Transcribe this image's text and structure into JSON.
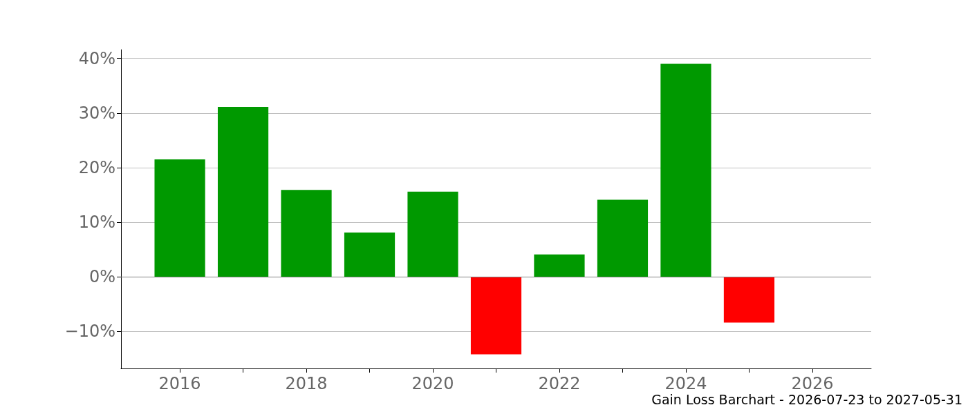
{
  "chart_data": {
    "type": "bar",
    "x": [
      2016,
      2017,
      2018,
      2019,
      2020,
      2021,
      2022,
      2023,
      2024,
      2025
    ],
    "values": [
      21.5,
      31.1,
      15.9,
      8.1,
      15.6,
      -14.2,
      4.1,
      14.1,
      39.0,
      -8.4
    ],
    "colors": [
      "#009900",
      "#009900",
      "#009900",
      "#009900",
      "#009900",
      "#ff0000",
      "#009900",
      "#009900",
      "#009900",
      "#ff0000"
    ],
    "xlim": [
      2015.07,
      2026.93
    ],
    "xticks": [
      2016,
      {
        "value": 2017,
        "label": null
      },
      2018,
      {
        "value": 2019,
        "label": null
      },
      2020,
      {
        "value": 2021,
        "label": null
      },
      2022,
      {
        "value": 2023,
        "label": null
      },
      2024,
      {
        "value": 2025,
        "label": null
      },
      2026
    ],
    "ylim": [
      -16.8,
      41.6
    ],
    "yticks": [
      {
        "value": -10,
        "label": "−10%"
      },
      {
        "value": 0,
        "label": "0%"
      },
      {
        "value": 10,
        "label": "10%"
      },
      {
        "value": 20,
        "label": "20%"
      },
      {
        "value": 30,
        "label": "30%"
      },
      {
        "value": 40,
        "label": "40%"
      }
    ],
    "grid": "y",
    "ref_lines": [
      {
        "axis": "y",
        "value": 0,
        "color": "#808080"
      }
    ],
    "annotations": [
      "Gain Loss Barchart - 2026-07-23 to 2027-05-31"
    ]
  }
}
